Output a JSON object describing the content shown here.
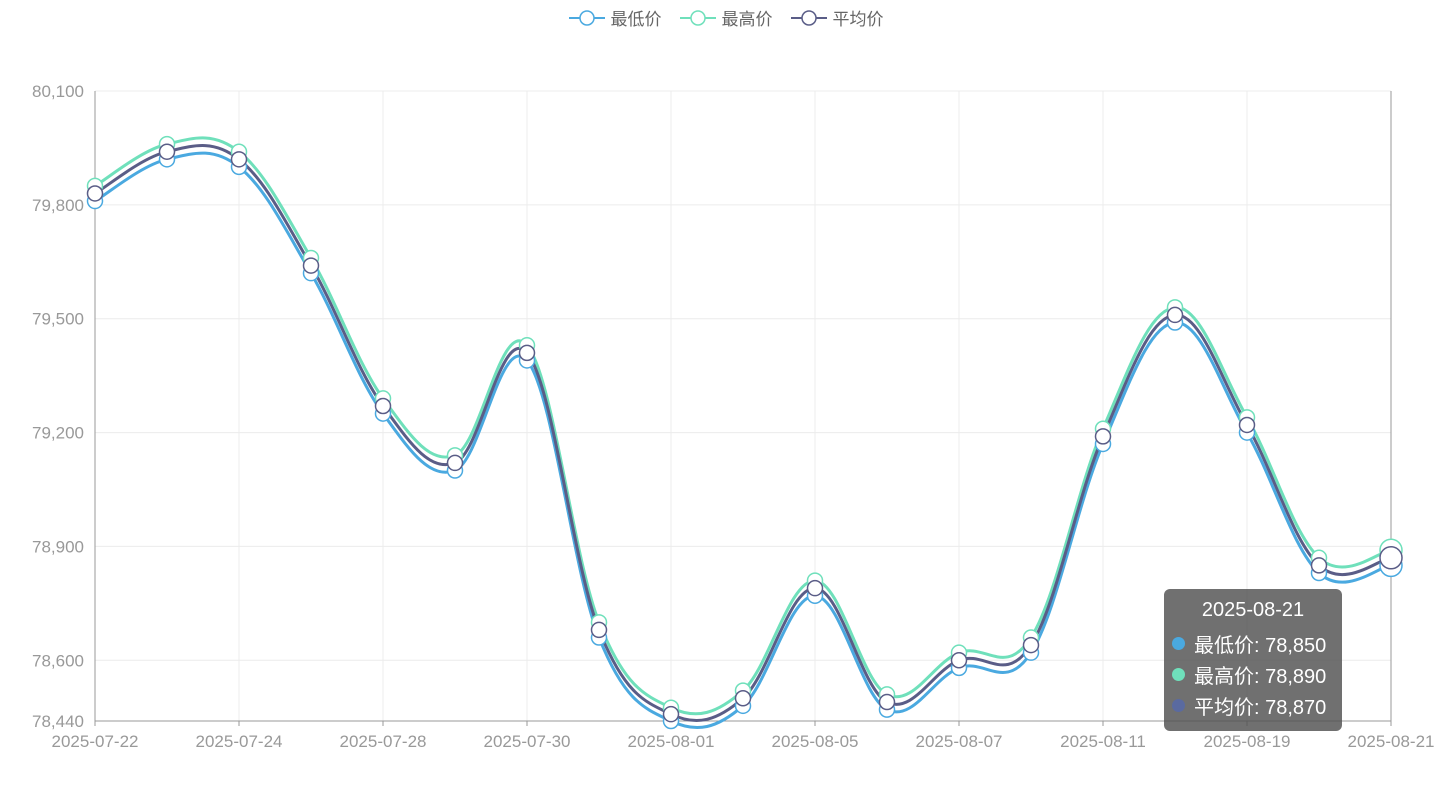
{
  "chart_data": {
    "type": "line",
    "title": "",
    "xlabel": "",
    "ylabel": "",
    "ylim": [
      78440,
      80100
    ],
    "y_ticks": [
      "80,100",
      "79,800",
      "79,500",
      "79,200",
      "78,900",
      "78,600",
      "78,440"
    ],
    "y_tick_values": [
      80100,
      79800,
      79500,
      79200,
      78900,
      78600,
      78440
    ],
    "x_tick_labels": [
      "2025-07-22",
      "2025-07-24",
      "2025-07-28",
      "2025-07-30",
      "2025-08-01",
      "2025-08-05",
      "2025-08-07",
      "2025-08-11",
      "2025-08-19",
      "2025-08-21"
    ],
    "x_points": 19,
    "x_tick_every": 2,
    "grid": true,
    "legend_position": "top-center",
    "series": [
      {
        "name": "最低价",
        "color": "#4aa9e0",
        "values": [
          79810,
          79920,
          79900,
          79620,
          79250,
          79100,
          79390,
          78660,
          78440,
          78480,
          78770,
          78470,
          78580,
          78620,
          79170,
          79490,
          79200,
          78830,
          78850
        ]
      },
      {
        "name": "最高价",
        "color": "#6fe0bb",
        "values": [
          79850,
          79960,
          79940,
          79660,
          79290,
          79140,
          79430,
          78700,
          78475,
          78520,
          78810,
          78510,
          78620,
          78660,
          79210,
          79530,
          79240,
          78870,
          78890
        ]
      },
      {
        "name": "平均价",
        "color": "#5a5d87",
        "values": [
          79830,
          79940,
          79920,
          79640,
          79270,
          79120,
          79410,
          78680,
          78458,
          78500,
          78790,
          78490,
          78600,
          78640,
          79190,
          79510,
          79220,
          78850,
          78870
        ]
      }
    ]
  },
  "tooltip": {
    "title": "2025-08-21",
    "rows": [
      {
        "label": "最低价: 78,850",
        "color": "#4aa9e0"
      },
      {
        "label": "最高价: 78,890",
        "color": "#6fe0bb"
      },
      {
        "label": "平均价: 78,870",
        "color": "#5a6aa0"
      }
    ]
  }
}
